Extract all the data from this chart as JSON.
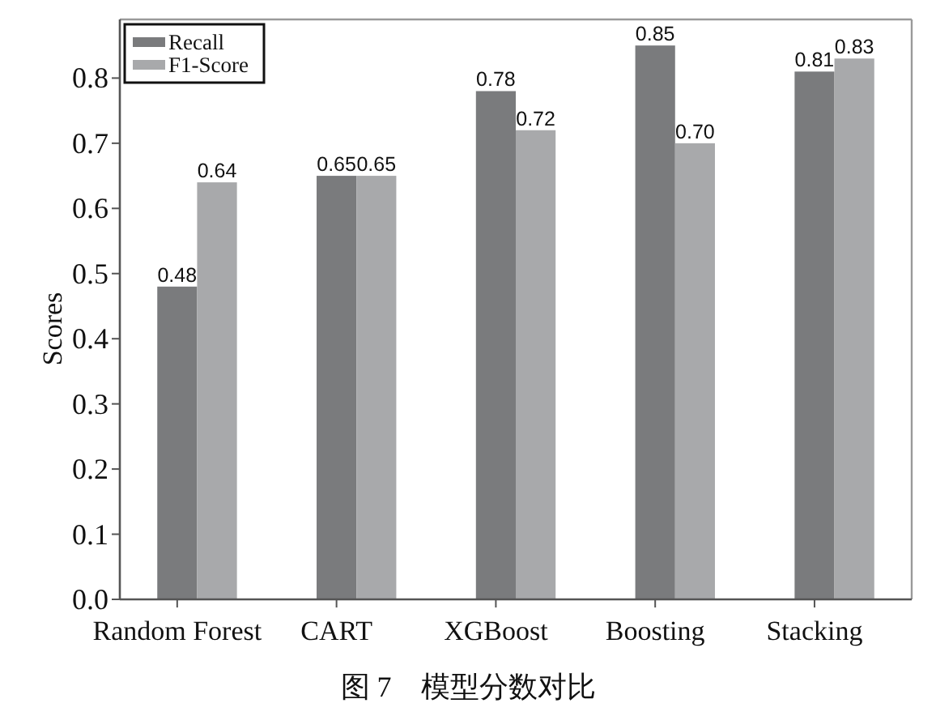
{
  "chart_data": {
    "type": "bar",
    "categories": [
      "Random Forest",
      "CART",
      "XGBoost",
      "Boosting",
      "Stacking"
    ],
    "series": [
      {
        "name": "Recall",
        "color": "#7a7b7d",
        "values": [
          0.48,
          0.65,
          0.78,
          0.85,
          0.81
        ],
        "value_labels": [
          "0.48",
          "0.65",
          "0.78",
          "0.85",
          "0.81"
        ]
      },
      {
        "name": "F1-Score",
        "color": "#a8a9ab",
        "values": [
          0.64,
          0.65,
          0.72,
          0.7,
          0.83
        ],
        "value_labels": [
          "0.64",
          "0.65",
          "0.72",
          "0.70",
          "0.83"
        ]
      }
    ],
    "ylabel": "Scores",
    "ylim": [
      0,
      0.89
    ],
    "yticks": [
      {
        "value": 0,
        "label": "0.0"
      },
      0.1,
      0.2,
      0.3,
      0.4,
      0.5,
      0.6,
      0.7,
      0.8
    ],
    "legend": "top left",
    "annotations": [
      "图 7　模型分数对比"
    ]
  }
}
